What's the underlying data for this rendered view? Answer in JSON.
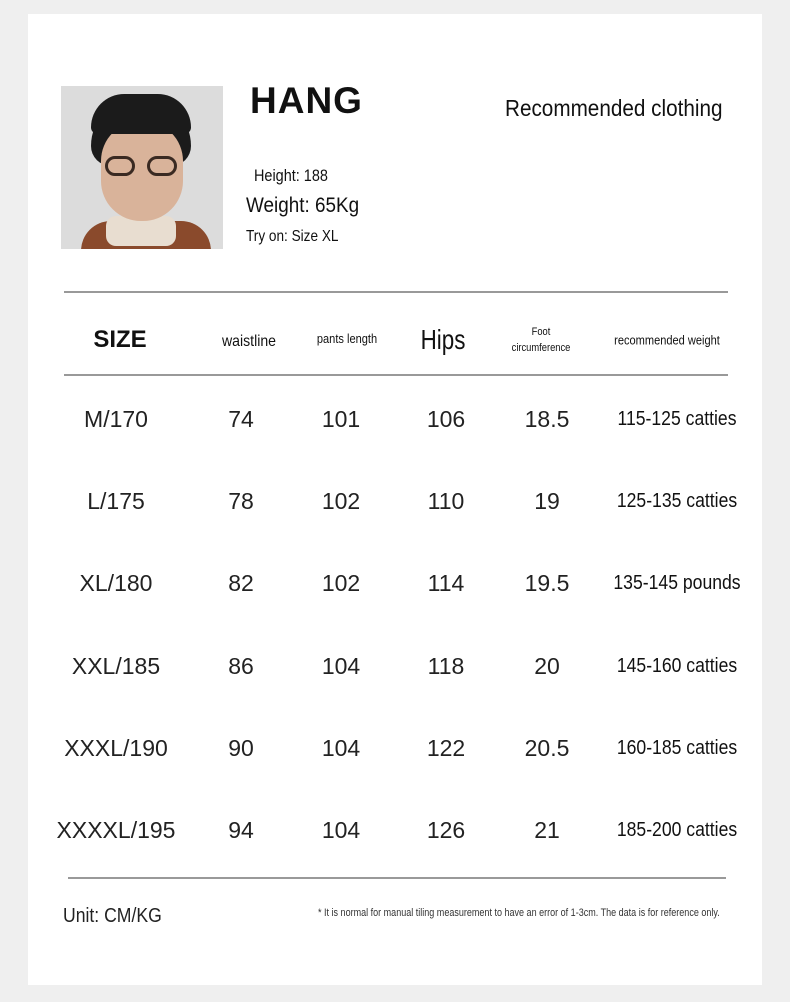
{
  "model": {
    "name": "HANG",
    "height": "Height: 188",
    "weight": "Weight: 65Kg",
    "try_on": "Try on: Size XL"
  },
  "title": "Recommended clothing",
  "table": {
    "headers": [
      "SIZE",
      "waistline",
      "pants length",
      "Hips",
      "Foot\ncircumference",
      "recommended weight"
    ],
    "header_foot_line1": "Foot",
    "header_foot_line2": "circumference",
    "rows": [
      [
        "M/170",
        "74",
        "101",
        "106",
        "18.5",
        "115-125 catties"
      ],
      [
        "L/175",
        "78",
        "102",
        "110",
        "19",
        "125-135 catties"
      ],
      [
        "XL/180",
        "82",
        "102",
        "114",
        "19.5",
        "135-145 pounds"
      ],
      [
        "XXL/185",
        "86",
        "104",
        "118",
        "20",
        "145-160 catties"
      ],
      [
        "XXXL/190",
        "90",
        "104",
        "122",
        "20.5",
        "160-185 catties"
      ],
      [
        "XXXXL/195",
        "94",
        "104",
        "126",
        "21",
        "185-200 catties"
      ]
    ]
  },
  "footer": {
    "unit": "Unit: CM/KG",
    "note": "* It is normal for manual tiling measurement to have an error of 1-3cm. The data is for reference only."
  }
}
